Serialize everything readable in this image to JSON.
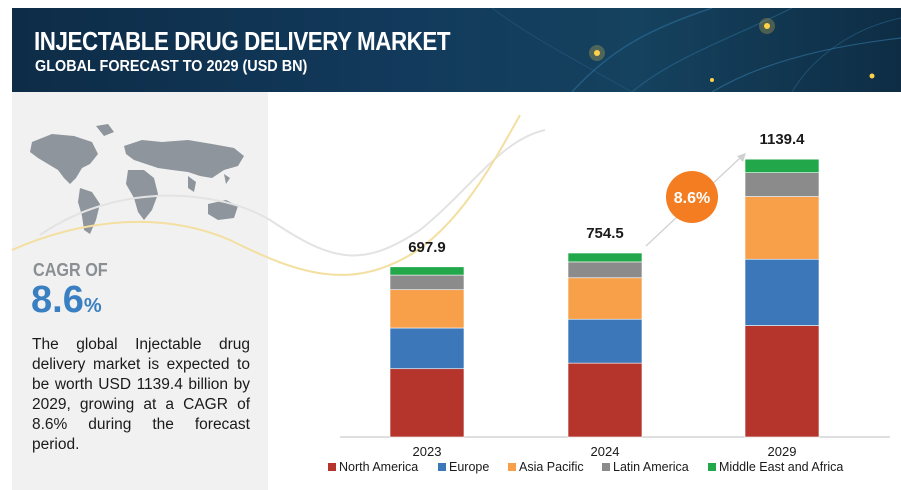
{
  "header": {
    "title": "INJECTABLE DRUG DELIVERY MARKET",
    "subtitle": "GLOBAL FORECAST TO 2029 (USD BN)"
  },
  "left_panel": {
    "cagr_label": "CAGR OF",
    "cagr_number": "8.6",
    "cagr_unit": "%",
    "description": "The global Injectable drug delivery market is expected to be worth USD 1139.4 billion by 2029, growing at a CAGR of 8.6% during the forecast period."
  },
  "growth_badge": "8.6%",
  "colors": {
    "north_america": "#b5352d",
    "europe": "#3c78b9",
    "asia_pacific": "#f7a049",
    "latin_america": "#8b8b8b",
    "middle_east_africa": "#22a84a",
    "badge": "#f37d20",
    "header_bg": "#123a5c",
    "cagr_blue": "#3a7fc1"
  },
  "chart_data": {
    "type": "bar",
    "stacked": true,
    "categories": [
      "2023",
      "2024",
      "2029"
    ],
    "totals": [
      "697.9",
      "754.5",
      "1139.4"
    ],
    "ylim": [
      0,
      1300
    ],
    "grid": false,
    "legend_position": "bottom",
    "series": [
      {
        "name": "North America",
        "color": "#b5352d",
        "values": [
          280,
          303,
          457
        ]
      },
      {
        "name": "Europe",
        "color": "#3c78b9",
        "values": [
          167,
          180,
          272
        ]
      },
      {
        "name": "Asia Pacific",
        "color": "#f7a049",
        "values": [
          157,
          170,
          257
        ]
      },
      {
        "name": "Latin America",
        "color": "#8b8b8b",
        "values": [
          60,
          65,
          98
        ]
      },
      {
        "name": "Middle East and Africa",
        "color": "#22a84a",
        "values": [
          33.9,
          36.5,
          55.4
        ]
      }
    ]
  }
}
